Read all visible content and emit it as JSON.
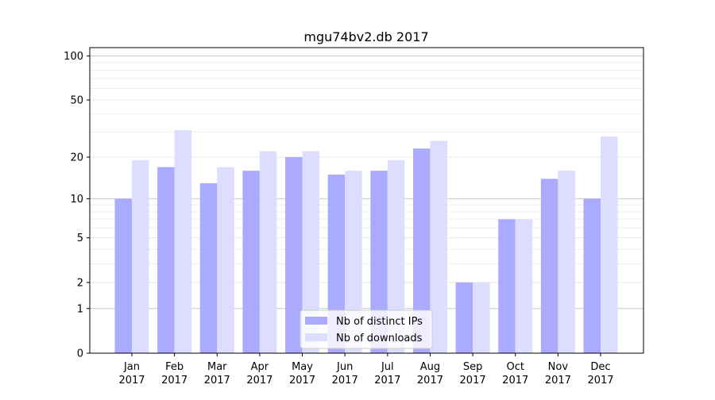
{
  "chart_data": {
    "type": "bar",
    "title": "mgu74bv2.db 2017",
    "xlabel": "",
    "ylabel": "",
    "yscale": "log10(1+y)",
    "ylim": [
      0,
      114
    ],
    "yticks": [
      0,
      1,
      2,
      5,
      10,
      20,
      50,
      100
    ],
    "ytick_labels": [
      "0",
      "1",
      "2",
      "5",
      "10",
      "20",
      "50",
      "100"
    ],
    "minor_yticks": [
      3,
      4,
      6,
      7,
      8,
      9,
      30,
      40,
      60,
      70,
      80,
      90
    ],
    "grid": true,
    "categories": [
      [
        "Jan",
        "2017"
      ],
      [
        "Feb",
        "2017"
      ],
      [
        "Mar",
        "2017"
      ],
      [
        "Apr",
        "2017"
      ],
      [
        "May",
        "2017"
      ],
      [
        "Jun",
        "2017"
      ],
      [
        "Jul",
        "2017"
      ],
      [
        "Aug",
        "2017"
      ],
      [
        "Sep",
        "2017"
      ],
      [
        "Oct",
        "2017"
      ],
      [
        "Nov",
        "2017"
      ],
      [
        "Dec",
        "2017"
      ]
    ],
    "series": [
      {
        "name": "Nb of distinct IPs",
        "color": "#aaaaff",
        "values": [
          10,
          17,
          13,
          16,
          20,
          15,
          16,
          23,
          2,
          7,
          14,
          10
        ]
      },
      {
        "name": "Nb of downloads",
        "color": "#ddddff",
        "values": [
          19,
          31,
          17,
          22,
          22,
          16,
          19,
          26,
          2,
          7,
          16,
          28
        ]
      }
    ],
    "legend_position": "lower-center"
  }
}
